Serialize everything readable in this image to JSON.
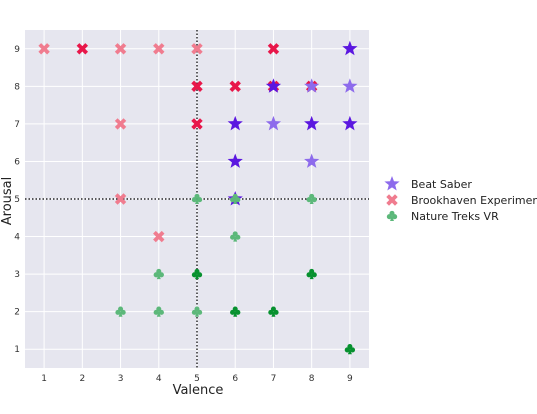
{
  "chart_data": {
    "type": "scatter",
    "xlabel": "Valence",
    "ylabel": "Arousal",
    "xlim": [
      0.5,
      9.5
    ],
    "ylim": [
      0.5,
      9.5
    ],
    "x_ticks": [
      "1",
      "2",
      "3",
      "4",
      "5",
      "6",
      "7",
      "8",
      "9"
    ],
    "y_ticks": [
      "1",
      "2",
      "3",
      "4",
      "5",
      "6",
      "7",
      "8",
      "9"
    ],
    "grid": true,
    "background": "#e6e6ef",
    "reference_lines": {
      "x": 5,
      "y": 5,
      "style": "dotted"
    },
    "legend_position": "right",
    "series": [
      {
        "name": "Beat Saber",
        "marker": "star",
        "legend_color": "#8d6bec",
        "points": [
          {
            "x": 9,
            "y": 9,
            "color": "#5b17e0"
          },
          {
            "x": 7,
            "y": 8,
            "color": "#5b17e0"
          },
          {
            "x": 8,
            "y": 8,
            "color": "#8d6bec"
          },
          {
            "x": 9,
            "y": 8,
            "color": "#8d6bec"
          },
          {
            "x": 6,
            "y": 7,
            "color": "#5b17e0"
          },
          {
            "x": 7,
            "y": 7,
            "color": "#8d6bec"
          },
          {
            "x": 8,
            "y": 7,
            "color": "#5b17e0"
          },
          {
            "x": 9,
            "y": 7,
            "color": "#5b17e0"
          },
          {
            "x": 6,
            "y": 6,
            "color": "#5b17e0"
          },
          {
            "x": 8,
            "y": 6,
            "color": "#8d6bec"
          },
          {
            "x": 6,
            "y": 5,
            "color": "#5b17e0"
          }
        ]
      },
      {
        "name": "Brookhaven Experiment",
        "marker": "x",
        "legend_color": "#f07c8f",
        "points": [
          {
            "x": 1,
            "y": 9,
            "color": "#f07c8f"
          },
          {
            "x": 2,
            "y": 9,
            "color": "#e8174a"
          },
          {
            "x": 3,
            "y": 9,
            "color": "#f07c8f"
          },
          {
            "x": 4,
            "y": 9,
            "color": "#f07c8f"
          },
          {
            "x": 5,
            "y": 9,
            "color": "#f07c8f"
          },
          {
            "x": 7,
            "y": 9,
            "color": "#e8174a"
          },
          {
            "x": 5,
            "y": 8,
            "color": "#e8174a"
          },
          {
            "x": 6,
            "y": 8,
            "color": "#e8174a"
          },
          {
            "x": 7,
            "y": 8,
            "color": "#e8174a"
          },
          {
            "x": 8,
            "y": 8,
            "color": "#e8174a"
          },
          {
            "x": 3,
            "y": 7,
            "color": "#f07c8f"
          },
          {
            "x": 5,
            "y": 7,
            "color": "#e8174a"
          },
          {
            "x": 3,
            "y": 5,
            "color": "#f07c8f"
          },
          {
            "x": 4,
            "y": 4,
            "color": "#f07c8f"
          }
        ]
      },
      {
        "name": "Nature Treks VR",
        "marker": "club",
        "legend_color": "#5cb87a",
        "points": [
          {
            "x": 5,
            "y": 5,
            "color": "#5cb87a"
          },
          {
            "x": 6,
            "y": 5,
            "color": "#5cb87a"
          },
          {
            "x": 8,
            "y": 5,
            "color": "#5cb87a"
          },
          {
            "x": 6,
            "y": 4,
            "color": "#5cb87a"
          },
          {
            "x": 4,
            "y": 3,
            "color": "#5cb87a"
          },
          {
            "x": 5,
            "y": 3,
            "color": "#07912f"
          },
          {
            "x": 8,
            "y": 3,
            "color": "#07912f"
          },
          {
            "x": 3,
            "y": 2,
            "color": "#5cb87a"
          },
          {
            "x": 4,
            "y": 2,
            "color": "#5cb87a"
          },
          {
            "x": 5,
            "y": 2,
            "color": "#5cb87a"
          },
          {
            "x": 6,
            "y": 2,
            "color": "#07912f"
          },
          {
            "x": 7,
            "y": 2,
            "color": "#07912f"
          },
          {
            "x": 9,
            "y": 1,
            "color": "#07912f"
          }
        ]
      }
    ]
  }
}
